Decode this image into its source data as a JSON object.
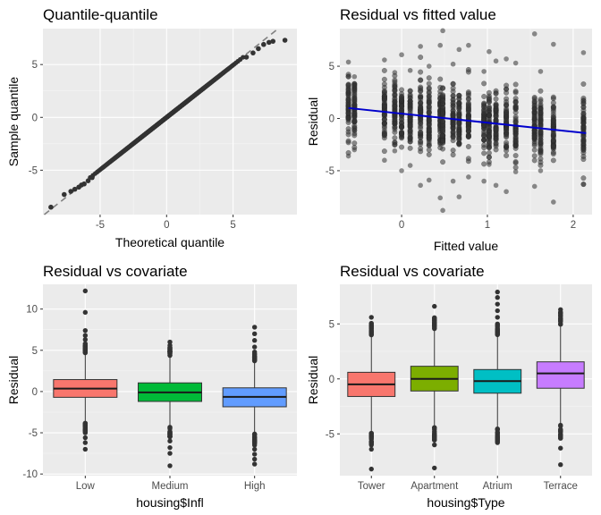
{
  "chart_data": [
    {
      "id": "qq",
      "type": "scatter",
      "title": "Quantile-quantile",
      "xlabel": "Theoretical quantile",
      "ylabel": "Sample quantile",
      "xlim": [
        -9.3,
        9.8
      ],
      "ylim": [
        -9.2,
        8.4
      ],
      "xticks": [
        -5,
        0,
        5
      ],
      "yticks": [
        -5,
        0,
        5
      ],
      "grid": true,
      "reference_line": {
        "slope": 1,
        "intercept": 0,
        "style": "dashed",
        "color": "#808080"
      },
      "point_color": "#333333",
      "tail_points": [
        [
          -8.7,
          -8.5
        ],
        [
          -7.7,
          -7.3
        ],
        [
          -7.2,
          -7.0
        ],
        [
          -6.9,
          -6.8
        ],
        [
          -6.6,
          -6.6
        ],
        [
          -6.4,
          -6.4
        ],
        [
          -6.2,
          -6.3
        ],
        [
          -5.9,
          -6.0
        ],
        [
          -5.6,
          -5.7
        ],
        [
          6.0,
          5.7
        ],
        [
          6.5,
          6.1
        ],
        [
          6.9,
          6.5
        ],
        [
          7.3,
          6.9
        ],
        [
          7.7,
          7.1
        ],
        [
          8.0,
          7.2
        ],
        [
          8.9,
          7.3
        ]
      ]
    },
    {
      "id": "fitted",
      "type": "scatter",
      "title": "Residual vs fitted value",
      "xlabel": "Fitted value",
      "ylabel": "Residual",
      "xlim": [
        -0.72,
        2.22
      ],
      "ylim": [
        -9.2,
        8.6
      ],
      "xticks": [
        0,
        1,
        2
      ],
      "yticks": [
        -5,
        0,
        5
      ],
      "grid": true,
      "point_color": "#333333",
      "point_opacity": 0.55,
      "trend_line": {
        "x": [
          -0.62,
          2.15
        ],
        "y": [
          1.0,
          -1.4
        ],
        "color": "#0000cc"
      },
      "columns": [
        {
          "x": -0.62,
          "min": -3.6,
          "max": 5.4
        },
        {
          "x": -0.55,
          "min": -3.0,
          "max": 4.0
        },
        {
          "x": -0.2,
          "min": -4.0,
          "max": 5.6
        },
        {
          "x": -0.08,
          "min": -3.1,
          "max": 4.4
        },
        {
          "x": 0.0,
          "min": -5.0,
          "max": 6.1
        },
        {
          "x": 0.1,
          "min": -4.5,
          "max": 4.6
        },
        {
          "x": 0.22,
          "min": -6.4,
          "max": 6.9
        },
        {
          "x": 0.32,
          "min": -5.9,
          "max": 5.0
        },
        {
          "x": 0.45,
          "min": -7.6,
          "max": 7.0
        },
        {
          "x": 0.48,
          "min": -8.8,
          "max": 8.4
        },
        {
          "x": 0.6,
          "min": -6.0,
          "max": 5.2
        },
        {
          "x": 0.67,
          "min": -7.5,
          "max": 6.6
        },
        {
          "x": 0.78,
          "min": -5.6,
          "max": 7.0
        },
        {
          "x": 0.96,
          "min": -6.0,
          "max": 4.5
        },
        {
          "x": 1.02,
          "min": -4.4,
          "max": 6.4
        },
        {
          "x": 1.1,
          "min": -6.4,
          "max": 5.5
        },
        {
          "x": 1.22,
          "min": -7.0,
          "max": 5.7
        },
        {
          "x": 1.33,
          "min": -5.1,
          "max": 5.3
        },
        {
          "x": 1.55,
          "min": -6.5,
          "max": 8.1
        },
        {
          "x": 1.62,
          "min": -5.0,
          "max": 4.5
        },
        {
          "x": 1.77,
          "min": -8.0,
          "max": 7.1
        },
        {
          "x": 2.12,
          "min": -6.3,
          "max": 6.3
        }
      ]
    },
    {
      "id": "infl",
      "type": "box",
      "title": "Residual vs covariate",
      "xlabel": "housing$Infl",
      "ylabel": "Residual",
      "ylim": [
        -10.2,
        13.0
      ],
      "yticks": [
        -10,
        -5,
        0,
        5,
        10
      ],
      "grid": true,
      "categories": [
        "Low",
        "Medium",
        "High"
      ],
      "boxes": [
        {
          "category": "Low",
          "color": "#f8766d",
          "q1": -0.7,
          "median": 0.35,
          "q3": 1.45,
          "whisker_low": -3.8,
          "whisker_high": 4.6,
          "outliers": [
            -4.5,
            -5.0,
            -5.6,
            -6.2,
            -7.0,
            5.2,
            5.8,
            6.3,
            6.8,
            7.4,
            9.6,
            12.2
          ]
        },
        {
          "category": "Medium",
          "color": "#00ba38",
          "q1": -1.2,
          "median": -0.1,
          "q3": 1.05,
          "whisker_low": -4.3,
          "whisker_high": 4.3,
          "outliers": [
            -4.9,
            -5.5,
            -6.0,
            -6.8,
            -7.5,
            -9.0,
            4.9,
            5.3,
            5.6,
            6.0
          ]
        },
        {
          "category": "High",
          "color": "#619cff",
          "q1": -1.85,
          "median": -0.65,
          "q3": 0.45,
          "whisker_low": -5.1,
          "whisker_high": 3.7,
          "outliers": [
            -5.6,
            -6.0,
            -6.5,
            -7.0,
            -7.6,
            -8.2,
            -8.8,
            4.2,
            4.8,
            5.4,
            6.2,
            7.0,
            7.8
          ]
        }
      ]
    },
    {
      "id": "type",
      "type": "box",
      "title": "Residual vs covariate",
      "xlabel": "housing$Type",
      "ylabel": "Residual",
      "ylim": [
        -8.8,
        8.6
      ],
      "yticks": [
        -5,
        0,
        5
      ],
      "grid": true,
      "categories": [
        "Tower",
        "Apartment",
        "Atrium",
        "Terrace"
      ],
      "boxes": [
        {
          "category": "Tower",
          "color": "#f8766d",
          "q1": -1.6,
          "median": -0.5,
          "q3": 0.6,
          "whisker_low": -4.9,
          "whisker_high": 3.9,
          "outliers": [
            -5.2,
            -5.7,
            -6.4,
            -8.2,
            4.2,
            4.6,
            5.0,
            5.6
          ]
        },
        {
          "category": "Apartment",
          "color": "#7cae00",
          "q1": -1.1,
          "median": 0.0,
          "q3": 1.15,
          "whisker_low": -4.4,
          "whisker_high": 4.5,
          "outliers": [
            -4.8,
            -5.3,
            -6.0,
            -8.1,
            4.9,
            5.5,
            6.6
          ]
        },
        {
          "category": "Atrium",
          "color": "#00bfc4",
          "q1": -1.3,
          "median": -0.2,
          "q3": 0.85,
          "whisker_low": -4.5,
          "whisker_high": 4.0,
          "outliers": [
            -4.9,
            -5.4,
            -5.8,
            4.4,
            5.0,
            5.6,
            6.2,
            6.8,
            7.4,
            7.9
          ]
        },
        {
          "category": "Terrace",
          "color": "#c77cff",
          "q1": -0.85,
          "median": 0.5,
          "q3": 1.55,
          "whisker_low": -4.2,
          "whisker_high": 4.9,
          "outliers": [
            -4.6,
            -5.1,
            -6.3,
            -7.8,
            5.3,
            5.7,
            6.0,
            6.3
          ]
        }
      ]
    }
  ]
}
